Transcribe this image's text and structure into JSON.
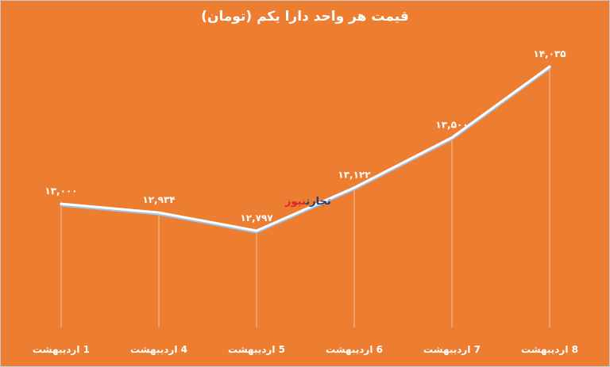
{
  "chart_data": {
    "type": "line",
    "title": "قیمت هر واحد دارا یکم (تومان)",
    "categories": [
      "1 اردیبهشت",
      "4 اردیبهشت",
      "5 اردیبهشت",
      "6 اردیبهشت",
      "7 اردیبهشت",
      "8 اردیبهشت"
    ],
    "values": [
      13000,
      12934,
      12797,
      13122,
      13500,
      14035
    ],
    "data_labels": [
      "۱۳,۰۰۰",
      "۱۲,۹۳۴",
      "۱۲,۷۹۷",
      "۱۳,۱۲۲",
      "۱۳,۵۰۰",
      "۱۴,۰۳۵"
    ],
    "xlabel": "",
    "ylabel": "",
    "grid": false,
    "legend": "none",
    "colors": {
      "background": "#ED7D31",
      "line": "#ffffff",
      "line_shadow": "#9dc3e6",
      "text": "#ffffff"
    }
  },
  "watermark": {
    "part1": "تجارت",
    "part2": "نیوز"
  }
}
